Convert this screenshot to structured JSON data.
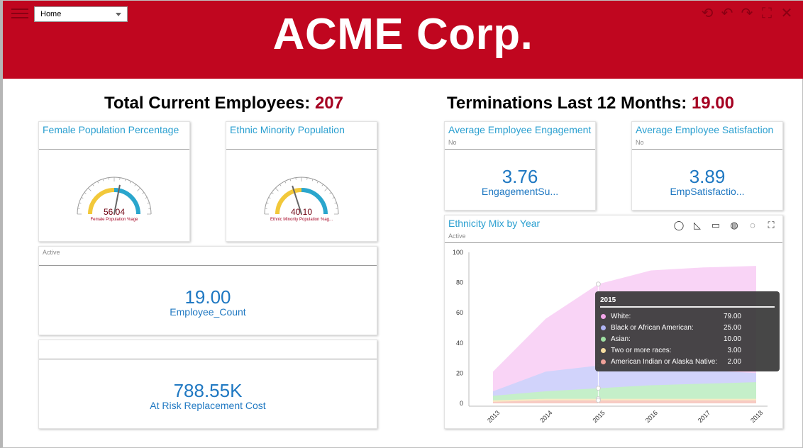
{
  "header": {
    "title": "ACME Corp.",
    "home_select": "Home",
    "tools": [
      "undo-all-icon",
      "undo-icon",
      "redo-icon",
      "fullscreen-icon",
      "close-icon"
    ]
  },
  "headlines": {
    "employees_label": "Total Current Employees:",
    "employees_value": "207",
    "terminations_label": "Terminations Last 12 Months:",
    "terminations_value": "19.00"
  },
  "female_gauge": {
    "title": "Female Population Percentage",
    "value": "56.04",
    "label": "Female Population %age",
    "level": 0.5604
  },
  "minority_gauge": {
    "title": "Ethnic Minority Population",
    "value": "40.10",
    "label": "Ethnic Minority Population %ag...",
    "level": 0.401
  },
  "employee_count": {
    "sub": "Active",
    "value": "19.00",
    "label": "Employee_Count"
  },
  "replacement_cost": {
    "value": "788.55K",
    "label": "At Risk Replacement Cost"
  },
  "engagement": {
    "title": "Average Employee Engagement",
    "sub": "No",
    "value": "3.76",
    "label": "EngagementSu..."
  },
  "satisfaction": {
    "title": "Average Employee Satisfaction",
    "sub": "No",
    "value": "3.89",
    "label": "EmpSatisfactio..."
  },
  "ethnicity_chart": {
    "title": "Ethnicity Mix by Year",
    "sub": "Active",
    "tools": [
      "lasso-icon",
      "ruler-icon",
      "comment-icon",
      "globe-icon",
      "speech-icon",
      "expand-icon"
    ],
    "tooltip": {
      "title": "2015",
      "rows": [
        {
          "name": "White:",
          "value": "79.00",
          "color": "#f3a6ea"
        },
        {
          "name": "Black or African American:",
          "value": "25.00",
          "color": "#b0b4f4"
        },
        {
          "name": "Asian:",
          "value": "10.00",
          "color": "#9fe0a3"
        },
        {
          "name": "Two or more races:",
          "value": "3.00",
          "color": "#f6dda0"
        },
        {
          "name": "American Indian or Alaska Native:",
          "value": "2.00",
          "color": "#f0a29a"
        }
      ]
    }
  },
  "chart_data": {
    "type": "area",
    "x": [
      "2013",
      "2014",
      "2015",
      "2016",
      "2017",
      "2018"
    ],
    "ylim": [
      0,
      100
    ],
    "yticks": [
      "0",
      "20",
      "40",
      "60",
      "80",
      "100"
    ],
    "stacked": false,
    "series": [
      {
        "name": "White",
        "color": "#f9d2f6",
        "values": [
          21,
          56,
          79,
          88,
          90,
          91
        ]
      },
      {
        "name": "Black or African American",
        "color": "#cfd3fb",
        "values": [
          8,
          21,
          25,
          24,
          22,
          20
        ]
      },
      {
        "name": "Asian",
        "color": "#c4f0c6",
        "values": [
          5,
          8,
          10,
          12,
          13,
          14
        ]
      },
      {
        "name": "Two or more races",
        "color": "#fbe9c4",
        "values": [
          2,
          3,
          3,
          3,
          3,
          3
        ]
      },
      {
        "name": "American Indian or Alaska Native",
        "color": "#f7c9c3",
        "values": [
          1,
          2,
          2,
          2,
          2,
          2
        ]
      }
    ],
    "highlight_x": "2015"
  }
}
